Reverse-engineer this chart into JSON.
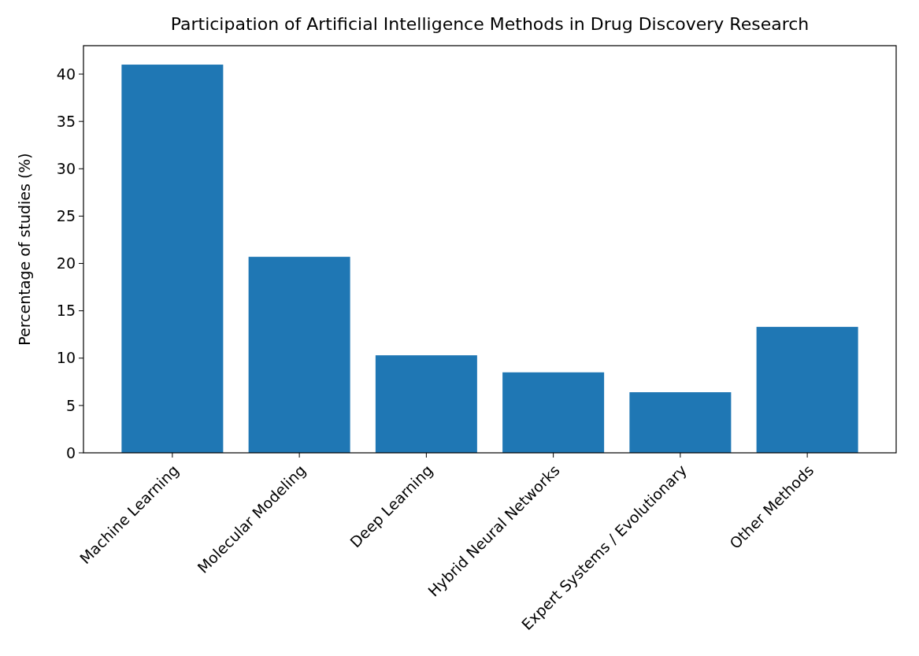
{
  "chart_data": {
    "type": "bar",
    "title": "Participation of Artificial Intelligence Methods in Drug Discovery Research",
    "ylabel": "Percentage of studies (%)",
    "categories": [
      "Machine Learning",
      "Molecular Modeling",
      "Deep Learning",
      "Hybrid Neural Networks",
      "Expert Systems / Evolutionary",
      "Other Methods"
    ],
    "values": [
      41.0,
      20.7,
      10.3,
      8.5,
      6.4,
      13.3
    ],
    "color": "#1f77b4",
    "ylim": [
      0,
      43
    ],
    "yticks": [
      0,
      5,
      10,
      15,
      20,
      25,
      30,
      35,
      40
    ],
    "grid": false
  }
}
